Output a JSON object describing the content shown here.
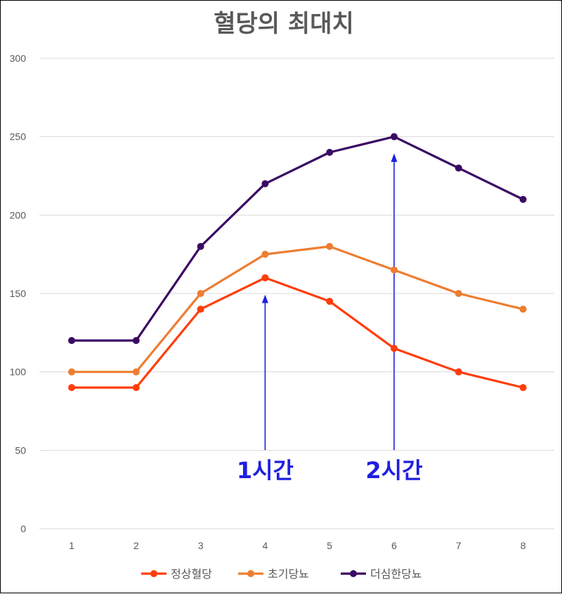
{
  "chart_data": {
    "type": "line",
    "title": "혈당의 최대치",
    "xlabel": "",
    "ylabel": "",
    "categories": [
      "1",
      "2",
      "3",
      "4",
      "5",
      "6",
      "7",
      "8"
    ],
    "yticks": [
      "0",
      "50",
      "100",
      "150",
      "200",
      "250",
      "300"
    ],
    "ylim": [
      0,
      300
    ],
    "grid": true,
    "legend_position": "bottom",
    "series": [
      {
        "name": "정상혈당",
        "color": "#FF3D0A",
        "values": [
          90,
          90,
          140,
          160,
          145,
          115,
          100,
          90
        ]
      },
      {
        "name": "초기당뇨",
        "color": "#ED7D31",
        "values": [
          100,
          100,
          150,
          175,
          180,
          165,
          150,
          140
        ]
      },
      {
        "name": "더심한당뇨",
        "color": "#3B0A63",
        "values": [
          120,
          120,
          180,
          220,
          240,
          250,
          230,
          210
        ]
      }
    ],
    "annotations": [
      {
        "text": "1시간",
        "x": "4",
        "y": 160,
        "color": "#1F1FE0"
      },
      {
        "text": "2시간",
        "x": "6",
        "y": 250,
        "color": "#1F1FE0"
      }
    ]
  }
}
